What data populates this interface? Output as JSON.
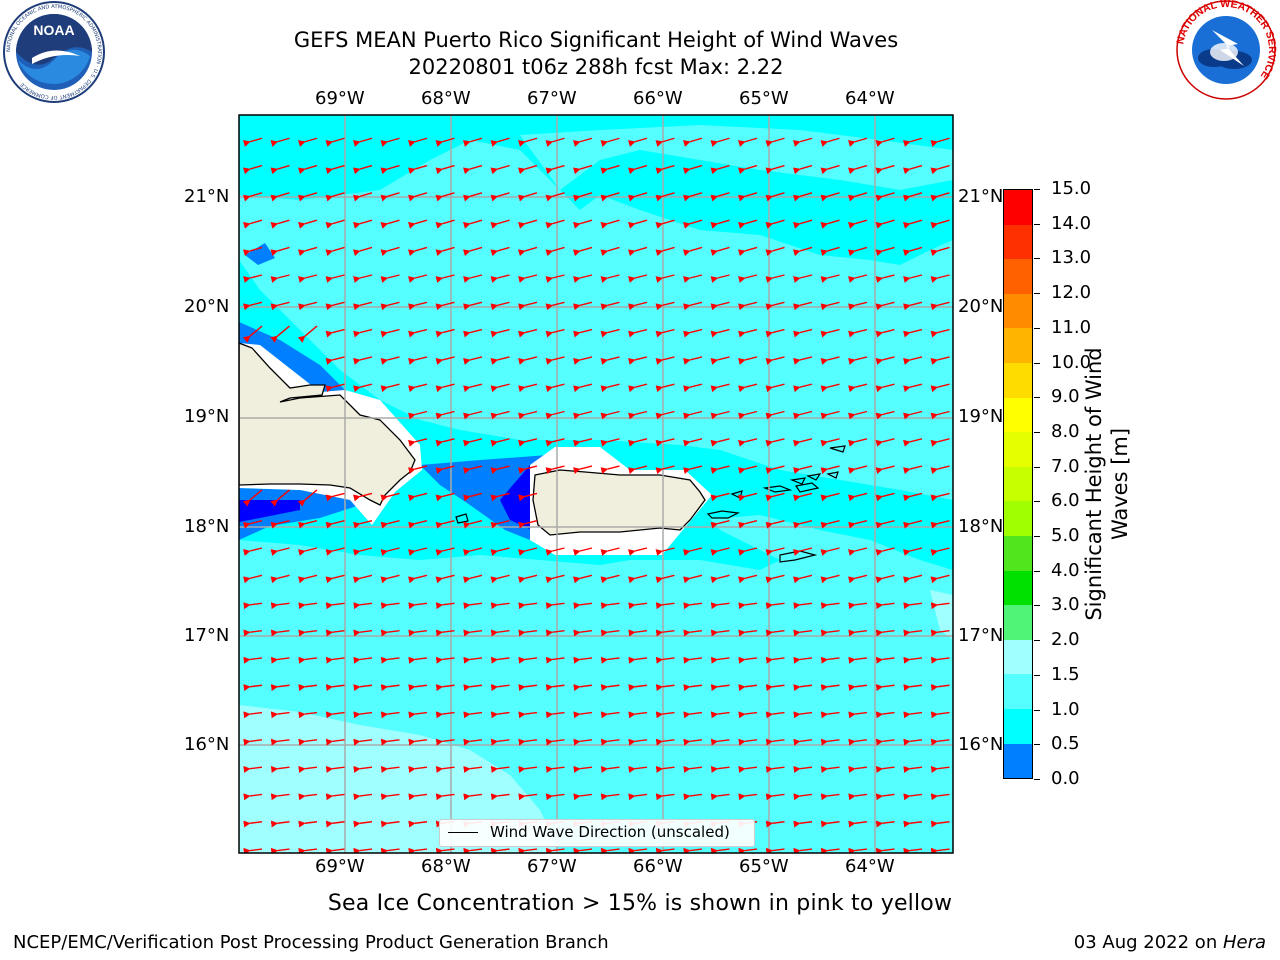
{
  "header": {
    "title_line1": "GEFS MEAN Puerto Rico Significant Height of Wind Waves",
    "title_line2": "20220801 t06z 288h fcst   Max: 2.22",
    "noaa_logo": {
      "icon": "noaa-logo-icon",
      "text": "NOAA",
      "ring_text": "NATIONAL OCEANIC AND ATMOSPHERIC ADMINISTRATION · U.S. DEPARTMENT OF COMMERCE"
    },
    "nws_logo": {
      "icon": "nws-logo-icon",
      "ring_text": "NATIONAL WEATHER SERVICE"
    }
  },
  "map": {
    "lon_labels": [
      "69°W",
      "68°W",
      "67°W",
      "66°W",
      "65°W",
      "64°W"
    ],
    "lat_labels": [
      "21°N",
      "20°N",
      "19°N",
      "18°N",
      "17°N",
      "16°N"
    ],
    "legend_label": "Wind Wave Direction (unscaled)",
    "colors": {
      "ocean_main": "#00ffff",
      "ocean_light": "#55ffff",
      "ocean_pale": "#a0ffff",
      "ocean_mid": "#0080ff",
      "ocean_low": "#0000ff",
      "land": "#f0eedc",
      "arrows": "#ff0000"
    }
  },
  "colorbar": {
    "label": "Significant Height of Wind Waves [m]",
    "label_line1": "Significant Height of Wind",
    "label_line2": "Waves [m]",
    "tick_labels": [
      "15.0",
      "14.0",
      "13.0",
      "12.0",
      "11.0",
      "10.0",
      "9.0",
      "8.0",
      "7.0",
      "6.0",
      "5.0",
      "4.0",
      "3.0",
      "2.0",
      "1.5",
      "1.0",
      "0.5",
      "0.0"
    ],
    "colors": [
      "#ff0000",
      "#ff3000",
      "#ff6000",
      "#ff8c00",
      "#ffb400",
      "#ffdc00",
      "#ffff00",
      "#e6ff00",
      "#c8ff00",
      "#a0ff00",
      "#50e61e",
      "#00e100",
      "#50f578",
      "#a0ffff",
      "#55ffff",
      "#00ffff",
      "#0080ff",
      "#0000ff"
    ]
  },
  "notes": {
    "sea_ice": "Sea Ice Concentration > 15% is shown in pink to yellow"
  },
  "footer": {
    "left": "NCEP/EMC/Verification Post Processing Product Generation Branch",
    "right_prefix": "03 Aug 2022 on ",
    "right_machine": "Hera"
  }
}
